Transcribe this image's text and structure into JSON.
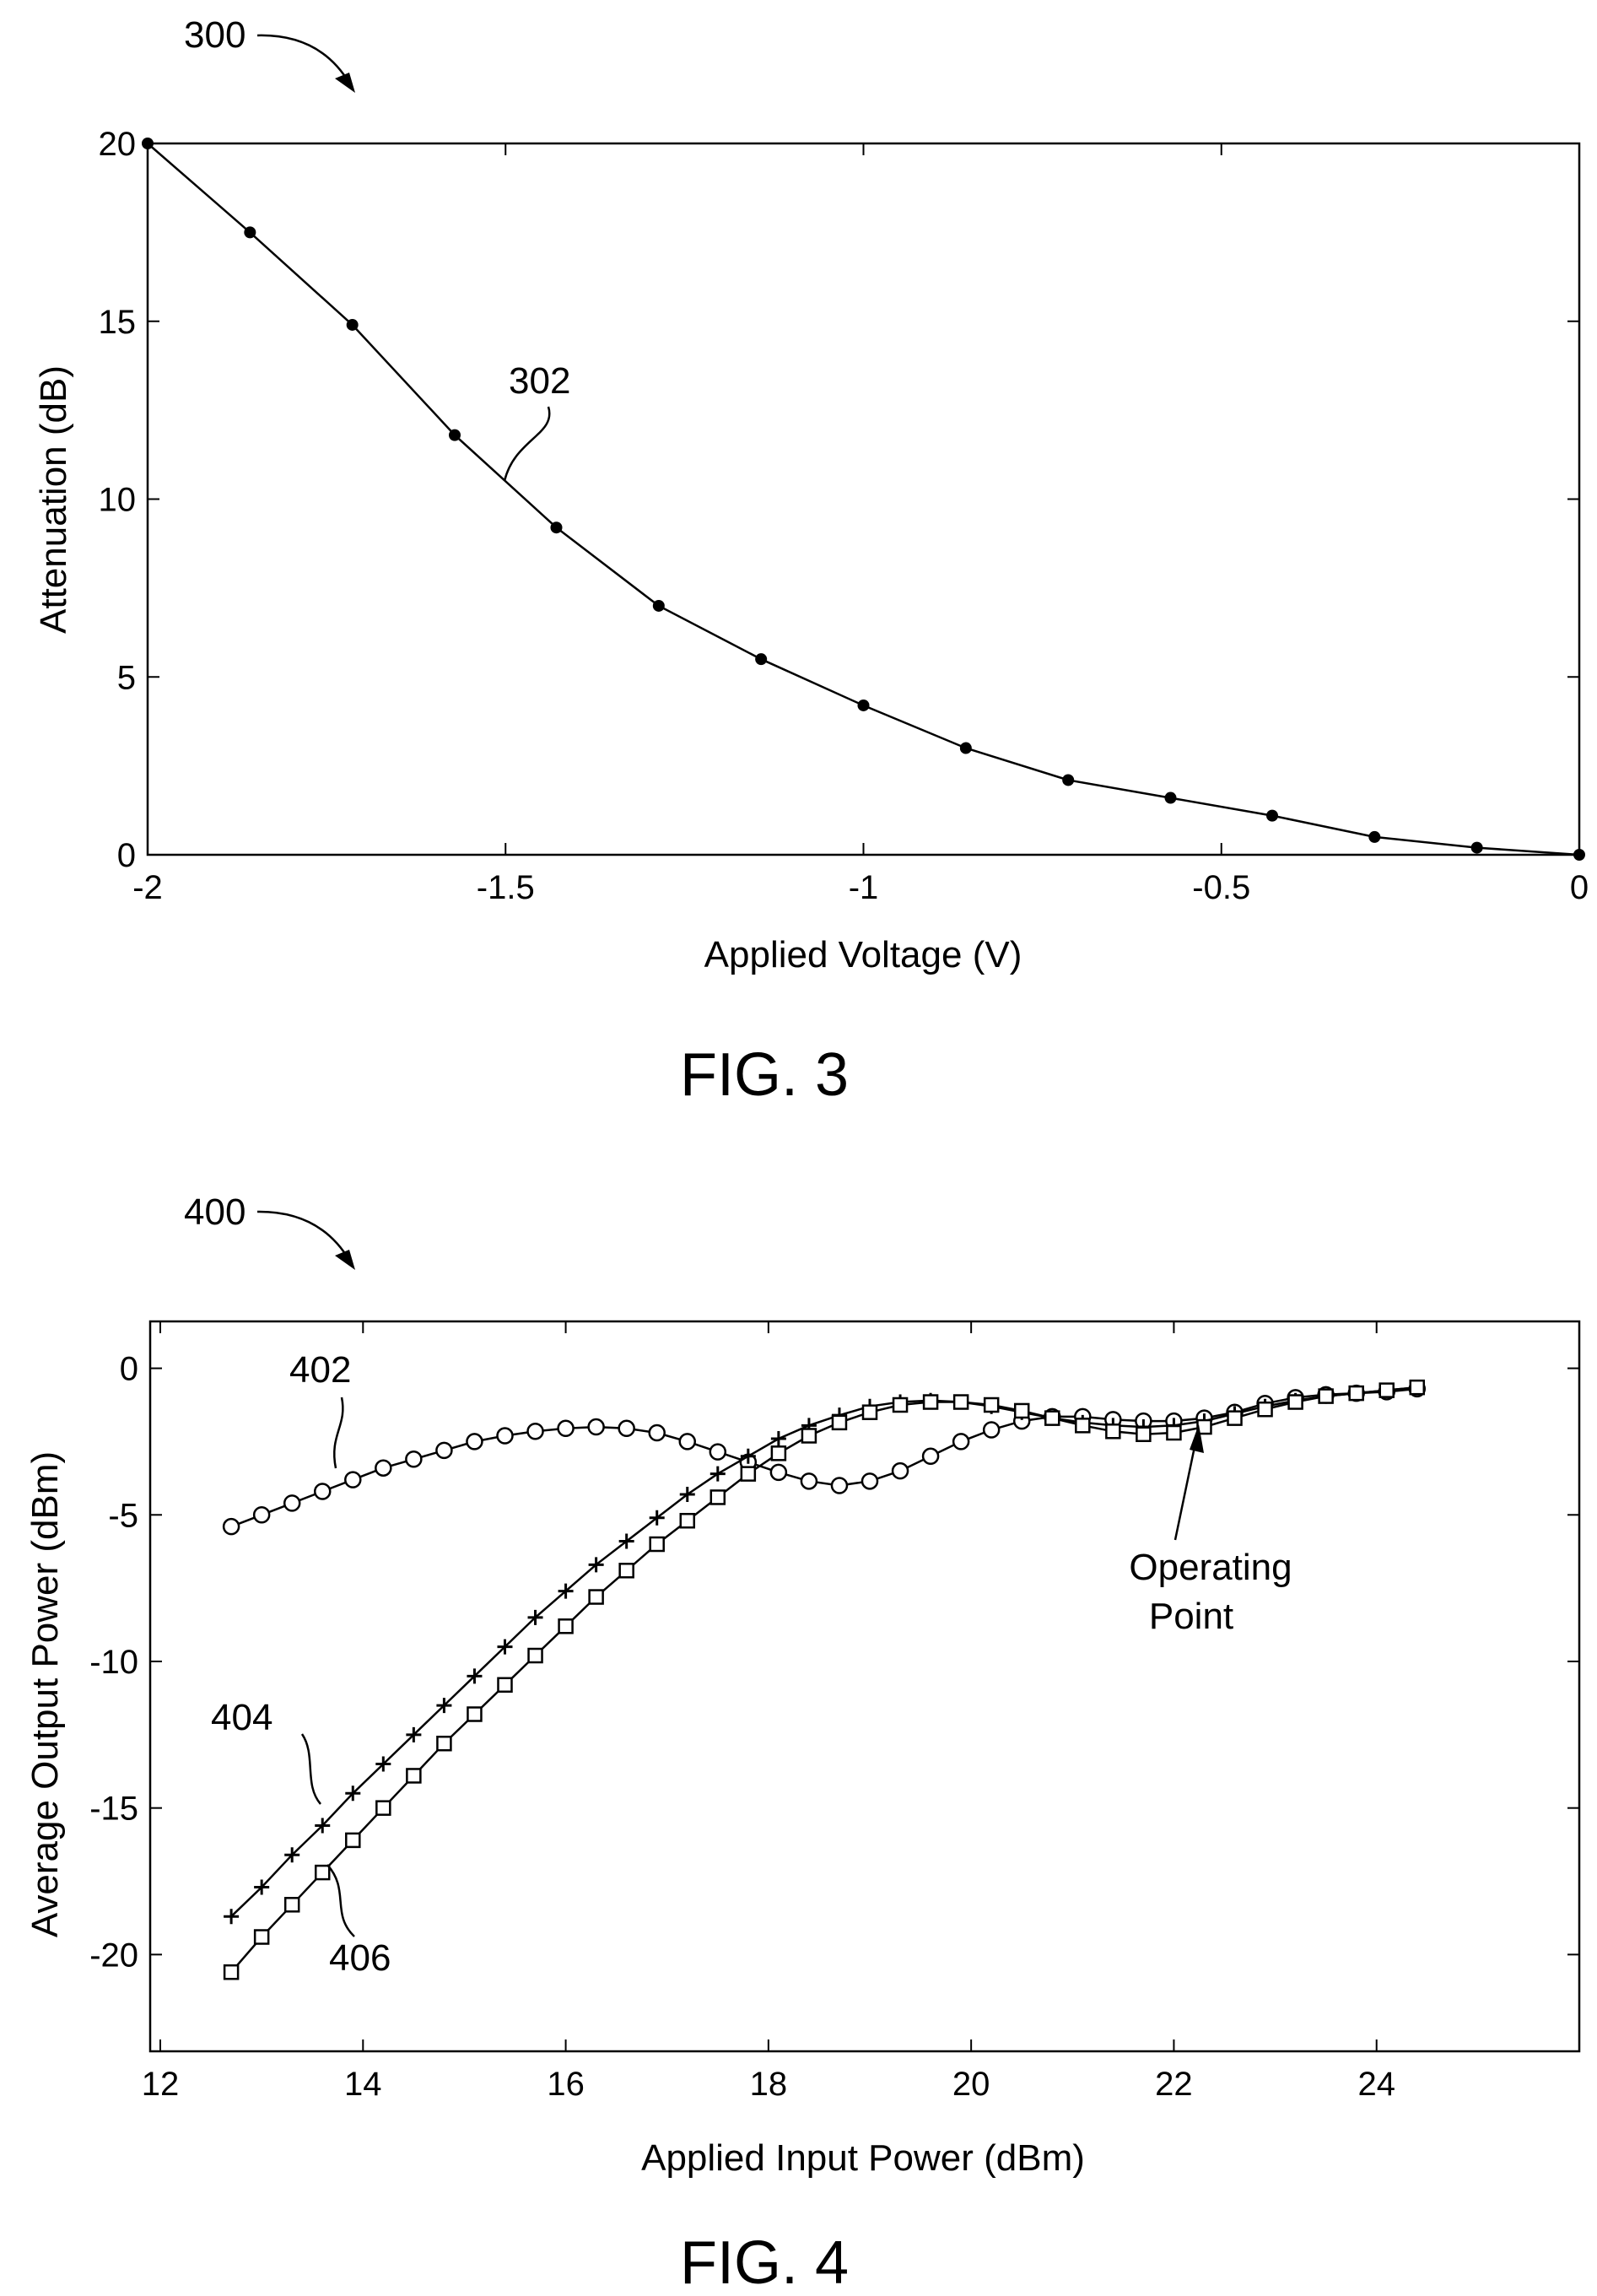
{
  "chart_data": [
    {
      "type": "line",
      "figure_ref": "300",
      "caption": "FIG. 3",
      "xlabel": "Applied Voltage (V)",
      "ylabel": "Attenuation (dB)",
      "xlim": [
        -2,
        0
      ],
      "ylim": [
        0,
        20
      ],
      "xticks": [
        -2,
        -1.5,
        -1,
        -0.5,
        0
      ],
      "xtick_labels": [
        "-2",
        "-1.5",
        "-1",
        "-0.5",
        "0"
      ],
      "yticks": [
        0,
        5,
        10,
        15,
        20
      ],
      "ytick_labels": [
        "0",
        "5",
        "10",
        "15",
        "20"
      ],
      "grid": false,
      "series": [
        {
          "ref_label": "302",
          "marker": "dot",
          "x": [
            -2.0,
            -1.857,
            -1.714,
            -1.571,
            -1.429,
            -1.286,
            -1.143,
            -1.0,
            -0.857,
            -0.714,
            -0.571,
            -0.429,
            -0.286,
            -0.143,
            0.0
          ],
          "y": [
            20.0,
            17.5,
            14.9,
            11.8,
            9.2,
            7.0,
            5.5,
            4.2,
            3.0,
            2.1,
            1.6,
            1.1,
            0.5,
            0.2,
            0.0
          ]
        }
      ]
    },
    {
      "type": "line",
      "figure_ref": "400",
      "caption": "FIG. 4",
      "xlabel": "Applied Input Power (dBm)",
      "ylabel": "Average Output Power (dBm)",
      "xlim": [
        11.9,
        26
      ],
      "ylim": [
        -23.3,
        1.6
      ],
      "xticks": [
        12,
        14,
        16,
        18,
        20,
        22,
        24
      ],
      "xtick_labels": [
        "12",
        "14",
        "16",
        "18",
        "20",
        "22",
        "24"
      ],
      "yticks": [
        0,
        -5,
        -10,
        -15,
        -20
      ],
      "ytick_labels": [
        "0",
        "-5",
        "-10",
        "-15",
        "-20"
      ],
      "grid": false,
      "annotation": {
        "text_lines": [
          "Operating",
          "Point"
        ],
        "x": 22.3,
        "y": -2.2
      },
      "series": [
        {
          "ref_label": "402",
          "marker": "circle",
          "x": [
            12.7,
            13.0,
            13.3,
            13.6,
            13.9,
            14.2,
            14.5,
            14.8,
            15.1,
            15.4,
            15.7,
            16.0,
            16.3,
            16.6,
            16.9,
            17.2,
            17.5,
            17.8,
            18.1,
            18.4,
            18.7,
            19.0,
            19.3,
            19.6,
            19.9,
            20.2,
            20.5,
            20.8,
            21.1,
            21.4,
            21.7,
            22.0,
            22.3,
            22.6,
            22.9,
            23.2,
            23.5,
            23.8,
            24.1,
            24.4
          ],
          "y": [
            -5.4,
            -5.0,
            -4.6,
            -4.2,
            -3.8,
            -3.4,
            -3.1,
            -2.8,
            -2.5,
            -2.3,
            -2.15,
            -2.05,
            -2.0,
            -2.05,
            -2.2,
            -2.5,
            -2.85,
            -3.2,
            -3.55,
            -3.85,
            -4.0,
            -3.85,
            -3.5,
            -3.0,
            -2.5,
            -2.1,
            -1.8,
            -1.65,
            -1.65,
            -1.75,
            -1.8,
            -1.8,
            -1.7,
            -1.5,
            -1.2,
            -1.0,
            -0.9,
            -0.85,
            -0.8,
            -0.7
          ]
        },
        {
          "ref_label": "404",
          "marker": "plus",
          "x": [
            12.7,
            13.0,
            13.3,
            13.6,
            13.9,
            14.2,
            14.5,
            14.8,
            15.1,
            15.4,
            15.7,
            16.0,
            16.3,
            16.6,
            16.9,
            17.2,
            17.5,
            17.8,
            18.1,
            18.4,
            18.7,
            19.0,
            19.3,
            19.6,
            19.9,
            20.2,
            20.5,
            20.8,
            21.1,
            21.4,
            21.7,
            22.0,
            22.3,
            22.6,
            22.9,
            23.2,
            23.5,
            23.8,
            24.1,
            24.4
          ],
          "y": [
            -18.7,
            -17.7,
            -16.6,
            -15.6,
            -14.5,
            -13.5,
            -12.5,
            -11.5,
            -10.5,
            -9.5,
            -8.5,
            -7.6,
            -6.7,
            -5.9,
            -5.1,
            -4.3,
            -3.6,
            -3.0,
            -2.4,
            -1.95,
            -1.6,
            -1.3,
            -1.15,
            -1.1,
            -1.15,
            -1.3,
            -1.5,
            -1.7,
            -1.85,
            -1.95,
            -2.0,
            -1.95,
            -1.8,
            -1.55,
            -1.3,
            -1.1,
            -0.95,
            -0.85,
            -0.75,
            -0.65
          ]
        },
        {
          "ref_label": "406",
          "marker": "square",
          "x": [
            12.7,
            13.0,
            13.3,
            13.6,
            13.9,
            14.2,
            14.5,
            14.8,
            15.1,
            15.4,
            15.7,
            16.0,
            16.3,
            16.6,
            16.9,
            17.2,
            17.5,
            17.8,
            18.1,
            18.4,
            18.7,
            19.0,
            19.3,
            19.6,
            19.9,
            20.2,
            20.5,
            20.8,
            21.1,
            21.4,
            21.7,
            22.0,
            22.3,
            22.6,
            22.9,
            23.2,
            23.5,
            23.8,
            24.1,
            24.4
          ],
          "y": [
            -20.6,
            -19.4,
            -18.3,
            -17.2,
            -16.1,
            -15.0,
            -13.9,
            -12.8,
            -11.8,
            -10.8,
            -9.8,
            -8.8,
            -7.8,
            -6.9,
            -6.0,
            -5.2,
            -4.4,
            -3.6,
            -2.9,
            -2.3,
            -1.85,
            -1.5,
            -1.25,
            -1.15,
            -1.15,
            -1.25,
            -1.45,
            -1.7,
            -1.95,
            -2.15,
            -2.25,
            -2.2,
            -2.0,
            -1.7,
            -1.4,
            -1.15,
            -0.95,
            -0.85,
            -0.75,
            -0.65
          ]
        }
      ]
    }
  ]
}
